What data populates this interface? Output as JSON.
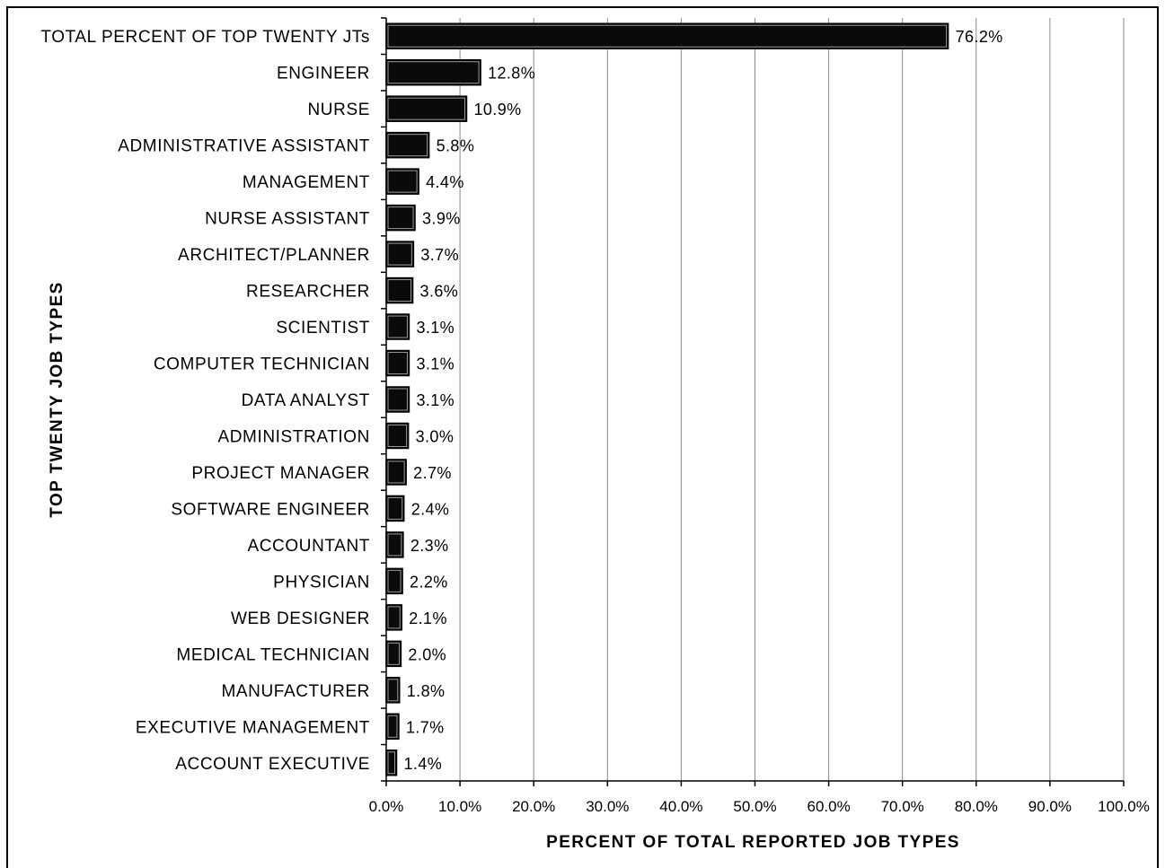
{
  "chart_data": {
    "type": "bar",
    "orientation": "horizontal",
    "categories": [
      "TOTAL PERCENT OF TOP TWENTY JTs",
      "ENGINEER",
      "NURSE",
      "ADMINISTRATIVE ASSISTANT",
      "MANAGEMENT",
      "NURSE ASSISTANT",
      "ARCHITECT/PLANNER",
      "RESEARCHER",
      "SCIENTIST",
      "COMPUTER TECHNICIAN",
      "DATA ANALYST",
      "ADMINISTRATION",
      "PROJECT MANAGER",
      "SOFTWARE ENGINEER",
      "ACCOUNTANT",
      "PHYSICIAN",
      "WEB DESIGNER",
      "MEDICAL TECHNICIAN",
      "MANUFACTURER",
      "EXECUTIVE MANAGEMENT",
      "ACCOUNT EXECUTIVE"
    ],
    "values": [
      76.2,
      12.8,
      10.9,
      5.8,
      4.4,
      3.9,
      3.7,
      3.6,
      3.1,
      3.1,
      3.1,
      3.0,
      2.7,
      2.4,
      2.3,
      2.2,
      2.1,
      2.0,
      1.8,
      1.7,
      1.4
    ],
    "value_labels": [
      "76.2%",
      "12.8%",
      "10.9%",
      "5.8%",
      "4.4%",
      "3.9%",
      "3.7%",
      "3.6%",
      "3.1%",
      "3.1%",
      "3.1%",
      "3.0%",
      "2.7%",
      "2.4%",
      "2.3%",
      "2.2%",
      "2.1%",
      "2.0%",
      "1.8%",
      "1.7%",
      "1.4%"
    ],
    "xlim": [
      0,
      100
    ],
    "xticks": [
      0,
      10,
      20,
      30,
      40,
      50,
      60,
      70,
      80,
      90,
      100
    ],
    "xtick_labels": [
      "0.0%",
      "10.0%",
      "20.0%",
      "30.0%",
      "40.0%",
      "50.0%",
      "60.0%",
      "70.0%",
      "80.0%",
      "90.0%",
      "100.0%"
    ],
    "xlabel": "PERCENT OF TOTAL REPORTED JOB TYPES",
    "ylabel": "TOP TWENTY JOB TYPES",
    "title": "",
    "grid": "vertical",
    "bar_color": "#0a0a0a",
    "legend": "none"
  }
}
